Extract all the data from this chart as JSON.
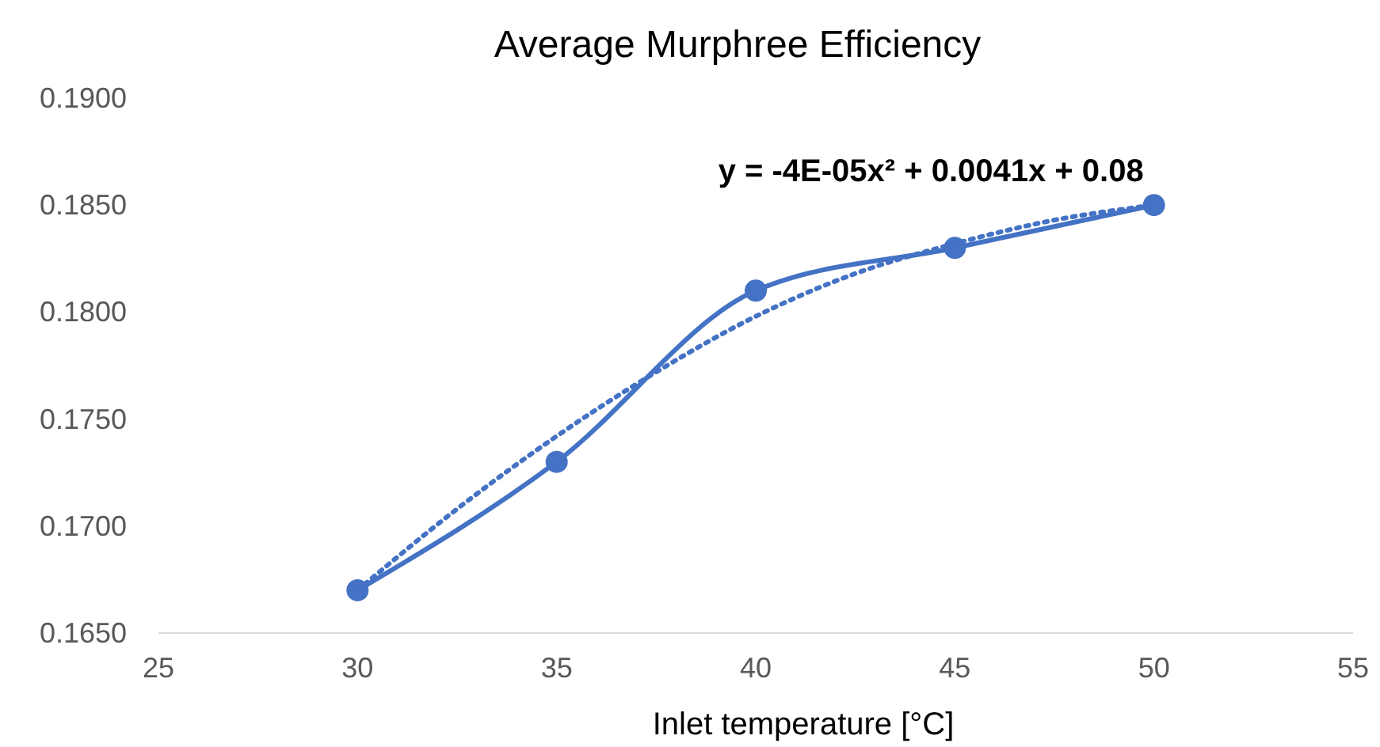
{
  "chart_data": {
    "type": "line",
    "title": "Average Murphree Efficiency",
    "xlabel": "Inlet temperature [°C]",
    "x": [
      30,
      35,
      40,
      45,
      50
    ],
    "series": [
      {
        "color": "#4472c4",
        "values": [
          0.167,
          0.173,
          0.181,
          0.183,
          0.185
        ],
        "marker": "circle",
        "line_style": "solid"
      },
      {
        "type": "line",
        "color": "#4472c4",
        "x": [
          30,
          32.5,
          35,
          37.5,
          40,
          42.5,
          45,
          47.5,
          50
        ],
        "values": [
          0.167,
          0.1708,
          0.1742,
          0.1772,
          0.1798,
          0.1818,
          0.1832,
          0.1843,
          0.185
        ],
        "marker": "none",
        "line_style": "dotted"
      }
    ],
    "annotations": [
      "y = -4E-05x² + 0.0041x + 0.08"
    ],
    "xlim": [
      25,
      55
    ],
    "xticks": [
      25,
      30,
      35,
      40,
      45,
      50,
      55
    ],
    "ylim": [
      0.165,
      0.19
    ],
    "yticks": [
      {
        "value": 0.165,
        "label": "0.1650"
      },
      {
        "value": 0.17,
        "label": "0.1700"
      },
      {
        "value": 0.175,
        "label": "0.1750"
      },
      {
        "value": 0.18,
        "label": "0.1800"
      },
      {
        "value": 0.185,
        "label": "0.1850"
      },
      {
        "value": 0.19,
        "label": "0.1900"
      }
    ]
  }
}
